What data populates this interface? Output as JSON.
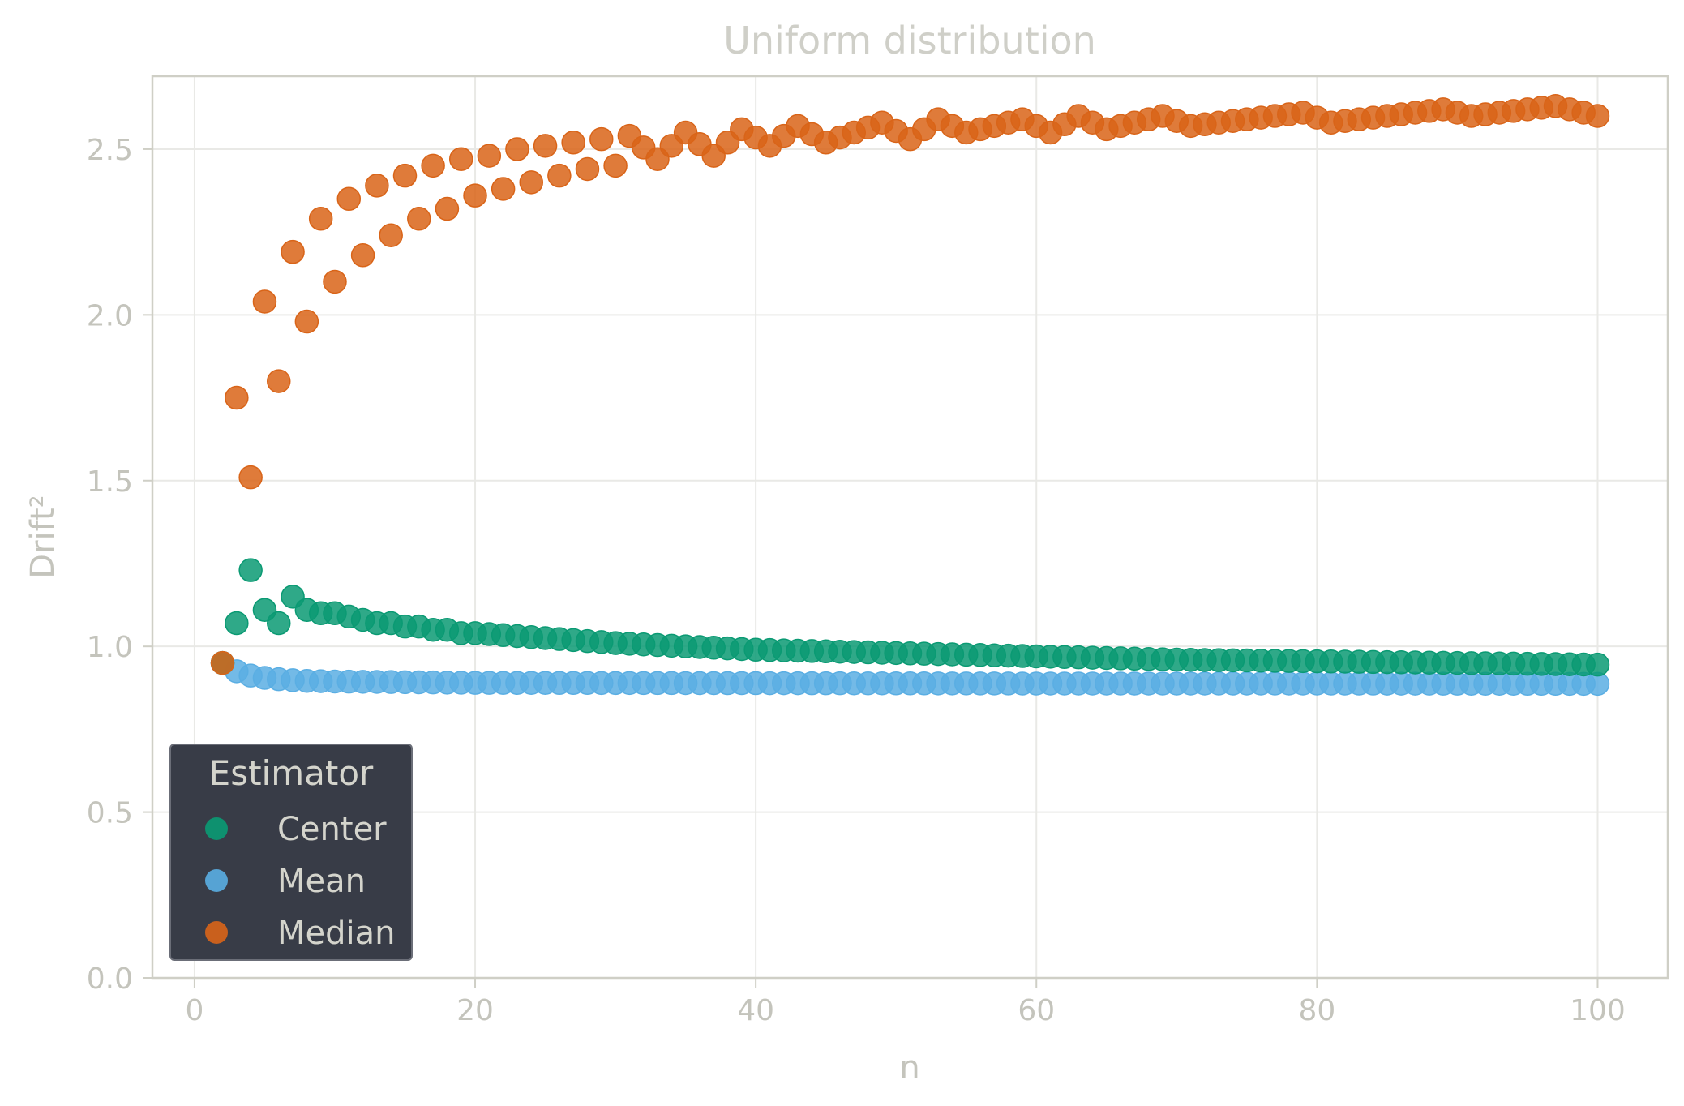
{
  "chart_data": {
    "type": "scatter",
    "title": "Uniform distribution",
    "xlabel": "n",
    "ylabel": "Drift²",
    "xlim": [
      -3,
      105
    ],
    "ylim": [
      0,
      2.72
    ],
    "xticks": [
      0,
      20,
      40,
      60,
      80,
      100
    ],
    "yticks": [
      0.0,
      0.5,
      1.0,
      1.5,
      2.0,
      2.5
    ],
    "xtick_labels": [
      "0",
      "20",
      "40",
      "60",
      "80",
      "100"
    ],
    "ytick_labels": [
      "0.0",
      "0.5",
      "1.0",
      "1.5",
      "2.0",
      "2.5"
    ],
    "grid": true,
    "legend": {
      "title": "Estimator",
      "placement": "bottom-left"
    },
    "x_range": [
      2,
      100
    ],
    "series": [
      {
        "name": "Center",
        "color": "#0a9a73",
        "points": [
          [
            2,
            0.95
          ],
          [
            3,
            1.07
          ],
          [
            4,
            1.23
          ],
          [
            5,
            1.11
          ],
          [
            6,
            1.07
          ],
          [
            7,
            1.15
          ],
          [
            8,
            1.11
          ],
          [
            9,
            1.1
          ],
          [
            10,
            1.1
          ],
          [
            11,
            1.09
          ],
          [
            12,
            1.08
          ],
          [
            13,
            1.07
          ],
          [
            14,
            1.07
          ],
          [
            15,
            1.06
          ],
          [
            16,
            1.06
          ],
          [
            17,
            1.05
          ],
          [
            18,
            1.05
          ],
          [
            19,
            1.04
          ],
          [
            20,
            1.04
          ],
          [
            30,
            1.01
          ],
          [
            40,
            0.99
          ],
          [
            50,
            0.98
          ],
          [
            60,
            0.97
          ],
          [
            70,
            0.96
          ],
          [
            80,
            0.955
          ],
          [
            90,
            0.95
          ],
          [
            100,
            0.945
          ]
        ]
      },
      {
        "name": "Mean",
        "color": "#5aaee3",
        "points": [
          [
            2,
            0.95
          ],
          [
            3,
            0.925
          ],
          [
            4,
            0.912
          ],
          [
            5,
            0.905
          ],
          [
            6,
            0.901
          ],
          [
            7,
            0.898
          ],
          [
            8,
            0.896
          ],
          [
            9,
            0.895
          ],
          [
            10,
            0.894
          ],
          [
            20,
            0.89
          ],
          [
            40,
            0.889
          ],
          [
            60,
            0.888
          ],
          [
            80,
            0.888
          ],
          [
            100,
            0.887
          ]
        ]
      },
      {
        "name": "Median",
        "color": "#d96418",
        "points": [
          [
            2,
            0.95
          ],
          [
            3,
            1.75
          ],
          [
            4,
            1.51
          ],
          [
            5,
            2.04
          ],
          [
            6,
            1.8
          ],
          [
            7,
            2.19
          ],
          [
            8,
            1.98
          ],
          [
            9,
            2.29
          ],
          [
            10,
            2.1
          ],
          [
            11,
            2.35
          ],
          [
            12,
            2.18
          ],
          [
            13,
            2.39
          ],
          [
            14,
            2.24
          ],
          [
            15,
            2.42
          ],
          [
            16,
            2.29
          ],
          [
            17,
            2.45
          ],
          [
            18,
            2.32
          ],
          [
            19,
            2.47
          ],
          [
            20,
            2.36
          ],
          [
            21,
            2.48
          ],
          [
            22,
            2.38
          ],
          [
            23,
            2.5
          ],
          [
            24,
            2.4
          ],
          [
            25,
            2.51
          ],
          [
            26,
            2.42
          ],
          [
            27,
            2.52
          ],
          [
            28,
            2.44
          ],
          [
            29,
            2.53
          ],
          [
            30,
            2.45
          ],
          [
            31,
            2.54
          ],
          [
            33,
            2.47
          ],
          [
            35,
            2.55
          ],
          [
            37,
            2.48
          ],
          [
            39,
            2.56
          ],
          [
            41,
            2.51
          ],
          [
            43,
            2.57
          ],
          [
            45,
            2.52
          ],
          [
            49,
            2.58
          ],
          [
            51,
            2.53
          ],
          [
            53,
            2.59
          ],
          [
            55,
            2.55
          ],
          [
            59,
            2.59
          ],
          [
            61,
            2.55
          ],
          [
            63,
            2.6
          ],
          [
            65,
            2.56
          ],
          [
            69,
            2.6
          ],
          [
            71,
            2.57
          ],
          [
            79,
            2.61
          ],
          [
            81,
            2.58
          ],
          [
            89,
            2.62
          ],
          [
            91,
            2.6
          ],
          [
            97,
            2.63
          ],
          [
            100,
            2.6
          ]
        ]
      }
    ]
  }
}
